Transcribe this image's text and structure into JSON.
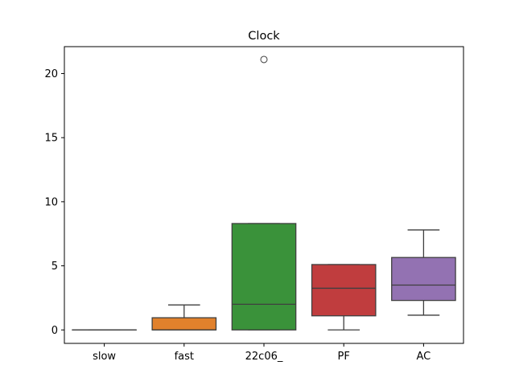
{
  "chart_data": {
    "type": "box",
    "title": "Clock",
    "xlabel": "",
    "ylabel": "",
    "categories": [
      "slow",
      "fast",
      "22c06_",
      "PF",
      "AC"
    ],
    "ylim": [
      -1.05,
      22.1
    ],
    "yticks": [
      0,
      5,
      10,
      15,
      20
    ],
    "boxes": [
      {
        "name": "slow",
        "color": "#3274a1",
        "whislo": 0.0,
        "q1": 0.0,
        "med": 0.0,
        "q3": 0.0,
        "whishi": 0.0,
        "fliers": []
      },
      {
        "name": "fast",
        "color": "#e1812c",
        "whislo": 0.0,
        "q1": 0.0,
        "med": 0.0,
        "q3": 0.95,
        "whishi": 1.95,
        "fliers": []
      },
      {
        "name": "22c06_",
        "color": "#3a923a",
        "whislo": 0.0,
        "q1": 0.0,
        "med": 2.0,
        "q3": 8.3,
        "whishi": 8.3,
        "fliers": [
          21.1
        ]
      },
      {
        "name": "PF",
        "color": "#c03d3e",
        "whislo": 0.0,
        "q1": 1.1,
        "med": 3.25,
        "q3": 5.1,
        "whishi": 5.1,
        "fliers": []
      },
      {
        "name": "AC",
        "color": "#9372b2",
        "whislo": 1.15,
        "q1": 2.3,
        "med": 3.5,
        "q3": 5.65,
        "whishi": 7.8,
        "fliers": []
      }
    ],
    "grid": false,
    "legend": "none"
  }
}
